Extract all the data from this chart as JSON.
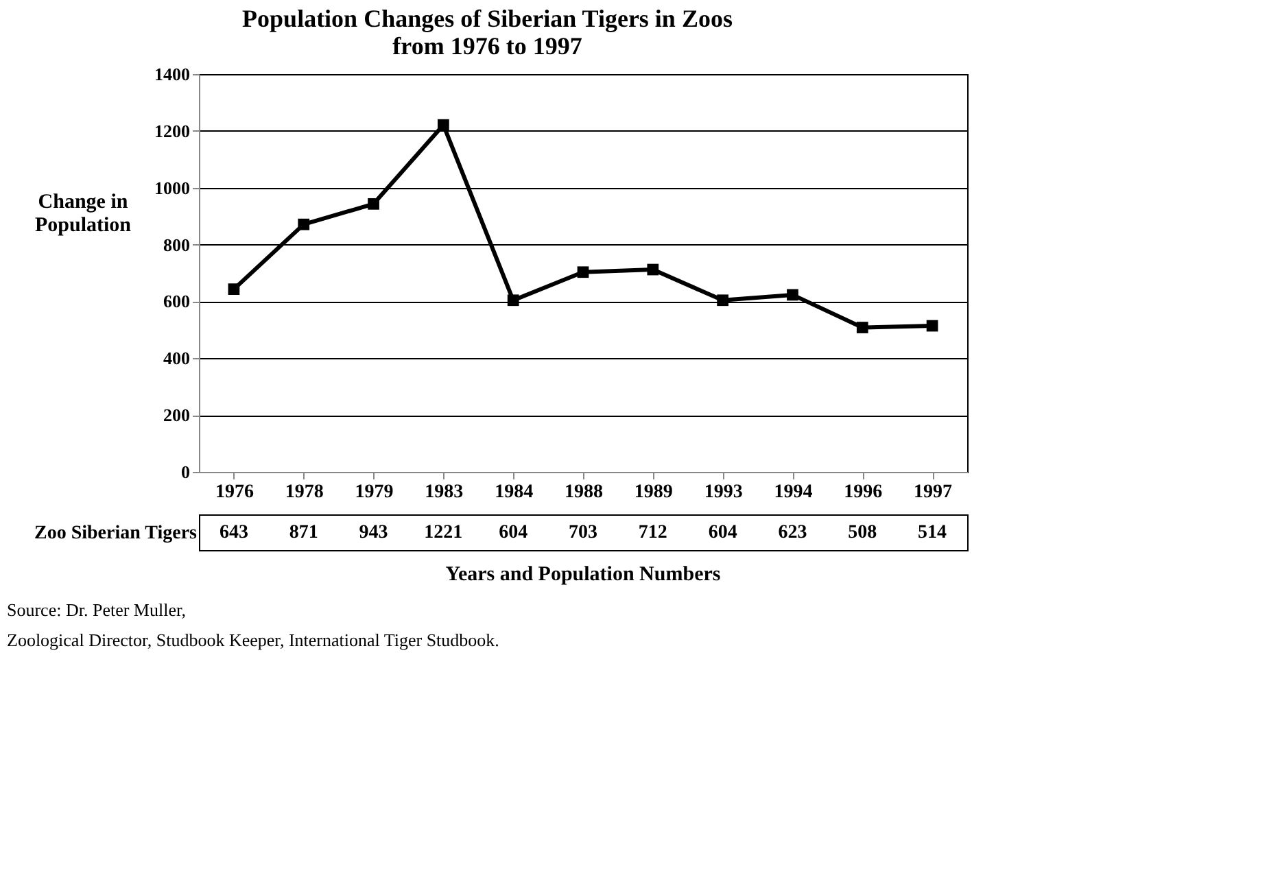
{
  "chart_data": {
    "type": "line",
    "title": "Population Changes of Siberian Tigers in Zoos from 1976 to 1997",
    "xlabel": "Years and Population Numbers",
    "ylabel": "Change in Population",
    "categories": [
      "1976",
      "1978",
      "1979",
      "1983",
      "1984",
      "1988",
      "1989",
      "1993",
      "1994",
      "1996",
      "1997"
    ],
    "series": [
      {
        "name": "Zoo Siberian Tigers",
        "color": "#000000",
        "values": [
          643,
          871,
          943,
          1221,
          604,
          703,
          712,
          604,
          623,
          508,
          514
        ]
      }
    ],
    "ylim": [
      0,
      1400
    ],
    "yticks": [
      0,
      200,
      400,
      600,
      800,
      1000,
      1200,
      1400
    ],
    "grid": "y",
    "marker": "square",
    "line_style": "solid",
    "data_labels": true,
    "legend": false,
    "annotations": [
      "Source: Dr. Peter Muller,",
      "Zoological Director, Studbook Keeper, International Tiger Studbook."
    ]
  }
}
